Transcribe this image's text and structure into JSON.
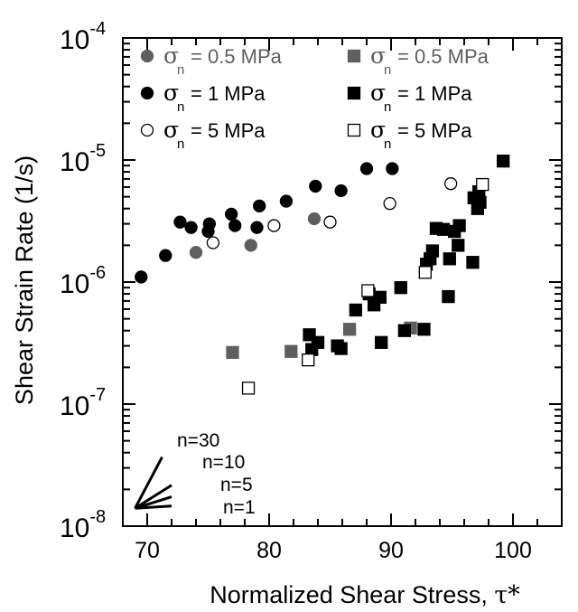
{
  "chart_data": {
    "type": "scatter",
    "xlabel_text": "Normalized Shear Stress, ",
    "xlabel_symbol": "τ*",
    "ylabel": "Shear Strain Rate (1/s)",
    "xlim": [
      68,
      104
    ],
    "ylim_exponent": [
      -8,
      -4
    ],
    "yscale": "log",
    "x_tick_labels": [
      "70",
      "80",
      "90",
      "100"
    ],
    "y_tick_labels": [
      {
        "base": "10",
        "exp": "-8"
      },
      {
        "base": "10",
        "exp": "-7"
      },
      {
        "base": "10",
        "exp": "-6"
      },
      {
        "base": "10",
        "exp": "-5"
      },
      {
        "base": "10",
        "exp": "-4"
      }
    ],
    "colors": {
      "gray": "#5f5f5f",
      "black": "#000000",
      "open": "#ffffff"
    },
    "series": [
      {
        "marker": "circle",
        "fill": "gray",
        "legend_sigma": "σ",
        "legend_sub": "n",
        "legend_value": "= 0.5 MPa",
        "points": [
          [
            74,
            1.75e-06
          ],
          [
            78.5,
            2e-06
          ],
          [
            83.7,
            3.3e-06
          ]
        ]
      },
      {
        "marker": "circle",
        "fill": "black",
        "legend_sigma": "σ",
        "legend_sub": "n",
        "legend_value": "= 1 MPa",
        "points": [
          [
            69.5,
            1.1e-06
          ],
          [
            71.5,
            1.65e-06
          ],
          [
            72.7,
            3.1e-06
          ],
          [
            73.6,
            2.8e-06
          ],
          [
            75.0,
            2.6e-06
          ],
          [
            75.1,
            3e-06
          ],
          [
            76.9,
            3.6e-06
          ],
          [
            77.2,
            2.9e-06
          ],
          [
            79.0,
            2.8e-06
          ],
          [
            79.2,
            4.2e-06
          ],
          [
            81.4,
            4.6e-06
          ],
          [
            83.8,
            6.1e-06
          ],
          [
            85.9,
            5.6e-06
          ],
          [
            88.0,
            8.5e-06
          ],
          [
            90.1,
            8.5e-06
          ]
        ]
      },
      {
        "marker": "circle",
        "fill": "open",
        "legend_sigma": "σ",
        "legend_sub": "n",
        "legend_value": "= 5 MPa",
        "points": [
          [
            75.4,
            2.1e-06
          ],
          [
            80.4,
            2.9e-06
          ],
          [
            85.0,
            3.1e-06
          ],
          [
            89.9,
            4.4e-06
          ],
          [
            94.9,
            6.4e-06
          ]
        ]
      },
      {
        "marker": "square",
        "fill": "gray",
        "legend_sigma": "σ",
        "legend_sub": "n",
        "legend_value": "= 0.5 MPa",
        "points": [
          [
            77.0,
            2.65e-07
          ],
          [
            81.8,
            2.7e-07
          ],
          [
            86.6,
            4.1e-07
          ],
          [
            91.6,
            4.2e-07
          ]
        ]
      },
      {
        "marker": "square",
        "fill": "black",
        "legend_sigma": "σ",
        "legend_sub": "n",
        "legend_value": "= 1 MPa",
        "points": [
          [
            83.3,
            3.7e-07
          ],
          [
            83.5,
            2.8e-07
          ],
          [
            84.0,
            3.2e-07
          ],
          [
            85.6,
            3e-07
          ],
          [
            85.9,
            2.85e-07
          ],
          [
            87.1,
            5.9e-07
          ],
          [
            88.2,
            8e-07
          ],
          [
            88.6,
            6.5e-07
          ],
          [
            89.1,
            7.5e-07
          ],
          [
            89.2,
            3.2e-07
          ],
          [
            90.8,
            9e-07
          ],
          [
            91.1,
            4e-07
          ],
          [
            92.7,
            4.1e-07
          ],
          [
            92.9,
            1.4e-06
          ],
          [
            93.2,
            1.55e-06
          ],
          [
            93.4,
            1.8e-06
          ],
          [
            93.7,
            2.75e-06
          ],
          [
            94.3,
            2.7e-06
          ],
          [
            94.7,
            7.6e-07
          ],
          [
            94.8,
            1.55e-06
          ],
          [
            95.2,
            2.6e-06
          ],
          [
            95.5,
            2e-06
          ],
          [
            95.6,
            2.9e-06
          ],
          [
            96.7,
            1.45e-06
          ],
          [
            96.8,
            4.9e-06
          ],
          [
            97.1,
            4e-06
          ],
          [
            97.2,
            5.5e-06
          ],
          [
            97.3,
            4.5e-06
          ],
          [
            99.2,
            9.8e-06
          ]
        ]
      },
      {
        "marker": "square",
        "fill": "open",
        "legend_sigma": "σ",
        "legend_sub": "n",
        "legend_value": "= 5 MPa",
        "points": [
          [
            78.3,
            1.35e-07
          ],
          [
            83.2,
            2.3e-07
          ],
          [
            88.1,
            8.5e-07
          ],
          [
            92.8,
            1.2e-06
          ],
          [
            97.5,
            6.3e-06
          ]
        ]
      }
    ],
    "annotations": [
      "n=30",
      "n=10",
      "n=5",
      "n=1"
    ],
    "slope_lines": [
      30,
      10,
      5,
      1
    ],
    "slope_origin": [
      69,
      1.4e-08
    ],
    "slope_dx": 3.0
  }
}
